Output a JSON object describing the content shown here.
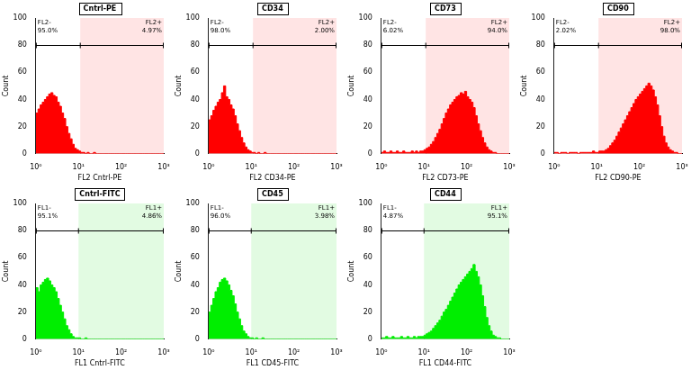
{
  "chart_data": [
    {
      "type": "histogram",
      "title": "Cntrl-PE",
      "x_label": "FL2 Cntrl-PE",
      "y_label": "Count",
      "log": "x",
      "grid": false,
      "color": "#ff0000",
      "xlim": [
        1,
        1000
      ],
      "xticks": [
        {
          "value": 1,
          "label": "10⁰"
        },
        {
          "value": 10,
          "label": "10¹"
        },
        {
          "value": 100,
          "label": "10²"
        },
        {
          "value": 1000,
          "label": "10³"
        }
      ],
      "ylim": [
        0,
        100
      ],
      "yticks": [
        0,
        20,
        40,
        60,
        80,
        100
      ],
      "gate": 11,
      "regions": [
        {
          "name": "FL2-",
          "label": "95.0%",
          "color": "#ffffff"
        },
        {
          "name": "FL2+",
          "label": "4.97%",
          "color": "#ffe4e4"
        }
      ],
      "bins": [
        1,
        1.122,
        1.259,
        1.413,
        1.585,
        1.778,
        1.995,
        2.239,
        2.512,
        2.818,
        3.162,
        3.548,
        3.981,
        4.467,
        5.012,
        5.623,
        6.31,
        7.079,
        7.943,
        8.913,
        10,
        11.22,
        12.59,
        14.13,
        15.85,
        17.78,
        19.95,
        22.39,
        25.12,
        28.18,
        31.62,
        35.48,
        39.81,
        44.67,
        50.12,
        56.23,
        63.1,
        70.79,
        79.43,
        89.13,
        100,
        112.2,
        125.9,
        141.3,
        158.5,
        177.8,
        199.5,
        223.9,
        251.2,
        281.8,
        316.2,
        354.8,
        398.1,
        446.7,
        501.2,
        562.3,
        631,
        707.9,
        794.3,
        891.3,
        1000
      ],
      "counts": [
        30,
        33,
        36,
        38,
        40,
        42,
        44,
        45,
        43,
        42,
        38,
        35,
        30,
        26,
        20,
        15,
        11,
        7,
        4,
        3,
        2,
        1,
        1,
        0,
        1,
        0,
        0,
        1,
        0,
        0,
        0,
        0,
        0,
        0,
        0,
        0,
        0,
        0,
        0,
        0,
        0,
        0,
        0,
        0,
        0,
        0,
        0,
        0,
        0,
        0,
        0,
        0,
        0,
        0,
        0,
        0,
        0,
        0,
        0,
        0
      ]
    },
    {
      "type": "histogram",
      "title": "CD34",
      "x_label": "FL2 CD34-PE",
      "y_label": "Count",
      "log": "x",
      "grid": false,
      "color": "#ff0000",
      "xlim": [
        1,
        1000
      ],
      "xticks": [
        {
          "value": 1,
          "label": "10⁰"
        },
        {
          "value": 10,
          "label": "10¹"
        },
        {
          "value": 100,
          "label": "10²"
        },
        {
          "value": 1000,
          "label": "10³"
        }
      ],
      "ylim": [
        0,
        100
      ],
      "yticks": [
        0,
        20,
        40,
        60,
        80,
        100
      ],
      "gate": 11,
      "regions": [
        {
          "name": "FL2-",
          "label": "98.0%",
          "color": "#ffffff"
        },
        {
          "name": "FL2+",
          "label": "2.00%",
          "color": "#ffe4e4"
        }
      ],
      "bins": [
        1,
        1.122,
        1.259,
        1.413,
        1.585,
        1.778,
        1.995,
        2.239,
        2.512,
        2.818,
        3.162,
        3.548,
        3.981,
        4.467,
        5.012,
        5.623,
        6.31,
        7.079,
        7.943,
        8.913,
        10,
        11.22,
        12.59,
        14.13,
        15.85,
        17.78,
        19.95,
        22.39,
        25.12,
        28.18,
        31.62,
        35.48,
        39.81,
        44.67,
        50.12,
        56.23,
        63.1,
        70.79,
        79.43,
        89.13,
        100,
        112.2,
        125.9,
        141.3,
        158.5,
        177.8,
        199.5,
        223.9,
        251.2,
        281.8,
        316.2,
        354.8,
        398.1,
        446.7,
        501.2,
        562.3,
        631,
        707.9,
        794.3,
        891.3,
        1000
      ],
      "counts": [
        25,
        28,
        32,
        35,
        38,
        40,
        45,
        50,
        42,
        40,
        36,
        33,
        28,
        22,
        17,
        12,
        8,
        5,
        3,
        2,
        1,
        1,
        0,
        1,
        0,
        0,
        1,
        0,
        0,
        0,
        0,
        0,
        0,
        0,
        0,
        0,
        0,
        0,
        0,
        0,
        0,
        0,
        0,
        0,
        0,
        0,
        0,
        0,
        0,
        0,
        0,
        0,
        0,
        0,
        0,
        0,
        0,
        0,
        0,
        0
      ]
    },
    {
      "type": "histogram",
      "title": "CD73",
      "x_label": "FL2 CD73-PE",
      "y_label": "Count",
      "log": "x",
      "grid": false,
      "color": "#ff0000",
      "xlim": [
        1,
        1000
      ],
      "xticks": [
        {
          "value": 1,
          "label": "10⁰"
        },
        {
          "value": 10,
          "label": "10¹"
        },
        {
          "value": 100,
          "label": "10²"
        },
        {
          "value": 1000,
          "label": "10³"
        }
      ],
      "ylim": [
        0,
        100
      ],
      "yticks": [
        0,
        20,
        40,
        60,
        80,
        100
      ],
      "gate": 11,
      "regions": [
        {
          "name": "FL2-",
          "label": "6.02%",
          "color": "#ffffff"
        },
        {
          "name": "FL2+",
          "label": "94.0%",
          "color": "#ffe4e4"
        }
      ],
      "bins": [
        1,
        1.122,
        1.259,
        1.413,
        1.585,
        1.778,
        1.995,
        2.239,
        2.512,
        2.818,
        3.162,
        3.548,
        3.981,
        4.467,
        5.012,
        5.623,
        6.31,
        7.079,
        7.943,
        8.913,
        10,
        11.22,
        12.59,
        14.13,
        15.85,
        17.78,
        19.95,
        22.39,
        25.12,
        28.18,
        31.62,
        35.48,
        39.81,
        44.67,
        50.12,
        56.23,
        63.1,
        70.79,
        79.43,
        89.13,
        100,
        112.2,
        125.9,
        141.3,
        158.5,
        177.8,
        199.5,
        223.9,
        251.2,
        281.8,
        316.2,
        354.8,
        398.1,
        446.7,
        501.2,
        562.3,
        631,
        707.9,
        794.3,
        891.3,
        1000
      ],
      "counts": [
        1,
        2,
        1,
        1,
        2,
        1,
        1,
        2,
        1,
        1,
        2,
        1,
        1,
        1,
        2,
        1,
        2,
        1,
        2,
        2,
        3,
        4,
        5,
        7,
        9,
        12,
        15,
        18,
        22,
        26,
        30,
        33,
        36,
        38,
        40,
        42,
        43,
        45,
        44,
        46,
        42,
        40,
        38,
        34,
        28,
        22,
        17,
        12,
        8,
        5,
        3,
        2,
        1,
        1,
        0,
        0,
        0,
        0,
        0,
        0
      ]
    },
    {
      "type": "histogram",
      "title": "CD90",
      "x_label": "FL2 CD90-PE",
      "y_label": "Count",
      "log": "x",
      "grid": false,
      "color": "#ff0000",
      "xlim": [
        1,
        1000
      ],
      "xticks": [
        {
          "value": 1,
          "label": "10⁰"
        },
        {
          "value": 10,
          "label": "10¹"
        },
        {
          "value": 100,
          "label": "10²"
        },
        {
          "value": 1000,
          "label": "10³"
        }
      ],
      "ylim": [
        0,
        100
      ],
      "yticks": [
        0,
        20,
        40,
        60,
        80,
        100
      ],
      "gate": 11,
      "regions": [
        {
          "name": "FL2-",
          "label": "2.02%",
          "color": "#ffffff"
        },
        {
          "name": "FL2+",
          "label": "98.0%",
          "color": "#ffe4e4"
        }
      ],
      "bins": [
        1,
        1.122,
        1.259,
        1.413,
        1.585,
        1.778,
        1.995,
        2.239,
        2.512,
        2.818,
        3.162,
        3.548,
        3.981,
        4.467,
        5.012,
        5.623,
        6.31,
        7.079,
        7.943,
        8.913,
        10,
        11.22,
        12.59,
        14.13,
        15.85,
        17.78,
        19.95,
        22.39,
        25.12,
        28.18,
        31.62,
        35.48,
        39.81,
        44.67,
        50.12,
        56.23,
        63.1,
        70.79,
        79.43,
        89.13,
        100,
        112.2,
        125.9,
        141.3,
        158.5,
        177.8,
        199.5,
        223.9,
        251.2,
        281.8,
        316.2,
        354.8,
        398.1,
        446.7,
        501.2,
        562.3,
        631,
        707.9,
        794.3,
        891.3,
        1000
      ],
      "counts": [
        1,
        1,
        0,
        1,
        1,
        1,
        0,
        1,
        1,
        1,
        1,
        0,
        1,
        1,
        1,
        1,
        1,
        1,
        2,
        1,
        1,
        2,
        2,
        2,
        3,
        4,
        6,
        8,
        10,
        13,
        16,
        19,
        22,
        25,
        28,
        31,
        34,
        37,
        40,
        42,
        44,
        46,
        48,
        50,
        52,
        50,
        47,
        42,
        36,
        28,
        20,
        13,
        8,
        5,
        3,
        2,
        1,
        1,
        0,
        0
      ]
    },
    {
      "type": "histogram",
      "title": "Cntrl-FITC",
      "x_label": "FL1 Cntrl-FITC",
      "y_label": "Count",
      "log": "x",
      "grid": false,
      "color": "#00ee00",
      "xlim": [
        1,
        1000
      ],
      "xticks": [
        {
          "value": 1,
          "label": "10⁰"
        },
        {
          "value": 10,
          "label": "10¹"
        },
        {
          "value": 100,
          "label": "10²"
        },
        {
          "value": 1000,
          "label": "10³"
        }
      ],
      "ylim": [
        0,
        100
      ],
      "yticks": [
        0,
        20,
        40,
        60,
        80,
        100
      ],
      "gate": 10,
      "regions": [
        {
          "name": "FL1-",
          "label": "95.1%",
          "color": "#ffffff"
        },
        {
          "name": "FL1+",
          "label": "4.86%",
          "color": "#e2fbe2"
        }
      ],
      "bins": [
        1,
        1.122,
        1.259,
        1.413,
        1.585,
        1.778,
        1.995,
        2.239,
        2.512,
        2.818,
        3.162,
        3.548,
        3.981,
        4.467,
        5.012,
        5.623,
        6.31,
        7.079,
        7.943,
        8.913,
        10,
        11.22,
        12.59,
        14.13,
        15.85,
        17.78,
        19.95,
        22.39,
        25.12,
        28.18,
        31.62,
        35.48,
        39.81,
        44.67,
        50.12,
        56.23,
        63.1,
        70.79,
        79.43,
        89.13,
        100,
        112.2,
        125.9,
        141.3,
        158.5,
        177.8,
        199.5,
        223.9,
        251.2,
        281.8,
        316.2,
        354.8,
        398.1,
        446.7,
        501.2,
        562.3,
        631,
        707.9,
        794.3,
        891.3,
        1000
      ],
      "counts": [
        38,
        35,
        40,
        42,
        44,
        45,
        43,
        40,
        38,
        35,
        30,
        25,
        20,
        15,
        10,
        7,
        4,
        2,
        1,
        1,
        1,
        0,
        0,
        1,
        0,
        0,
        0,
        0,
        0,
        0,
        0,
        0,
        0,
        0,
        0,
        0,
        0,
        0,
        0,
        0,
        0,
        0,
        0,
        0,
        0,
        0,
        0,
        0,
        0,
        0,
        0,
        0,
        0,
        0,
        0,
        0,
        0,
        0,
        0,
        0
      ]
    },
    {
      "type": "histogram",
      "title": "CD45",
      "x_label": "FL1 CD45-FITC",
      "y_label": "Count",
      "log": "x",
      "grid": false,
      "color": "#00ee00",
      "xlim": [
        1,
        1000
      ],
      "xticks": [
        {
          "value": 1,
          "label": "10⁰"
        },
        {
          "value": 10,
          "label": "10¹"
        },
        {
          "value": 100,
          "label": "10²"
        },
        {
          "value": 1000,
          "label": "10³"
        }
      ],
      "ylim": [
        0,
        100
      ],
      "yticks": [
        0,
        20,
        40,
        60,
        80,
        100
      ],
      "gate": 10,
      "regions": [
        {
          "name": "FL1-",
          "label": "96.0%",
          "color": "#ffffff"
        },
        {
          "name": "FL1+",
          "label": "3.98%",
          "color": "#e2fbe2"
        }
      ],
      "bins": [
        1,
        1.122,
        1.259,
        1.413,
        1.585,
        1.778,
        1.995,
        2.239,
        2.512,
        2.818,
        3.162,
        3.548,
        3.981,
        4.467,
        5.012,
        5.623,
        6.31,
        7.079,
        7.943,
        8.913,
        10,
        11.22,
        12.59,
        14.13,
        15.85,
        17.78,
        19.95,
        22.39,
        25.12,
        28.18,
        31.62,
        35.48,
        39.81,
        44.67,
        50.12,
        56.23,
        63.1,
        70.79,
        79.43,
        89.13,
        100,
        112.2,
        125.9,
        141.3,
        158.5,
        177.8,
        199.5,
        223.9,
        251.2,
        281.8,
        316.2,
        354.8,
        398.1,
        446.7,
        501.2,
        562.3,
        631,
        707.9,
        794.3,
        891.3,
        1000
      ],
      "counts": [
        20,
        25,
        30,
        35,
        38,
        42,
        44,
        45,
        43,
        40,
        36,
        32,
        26,
        20,
        15,
        10,
        6,
        4,
        2,
        1,
        1,
        0,
        1,
        0,
        0,
        1,
        0,
        0,
        0,
        0,
        0,
        0,
        0,
        0,
        0,
        0,
        0,
        0,
        0,
        0,
        0,
        0,
        0,
        0,
        0,
        0,
        0,
        0,
        0,
        0,
        0,
        0,
        0,
        0,
        0,
        0,
        0,
        0,
        0,
        0
      ]
    },
    {
      "type": "histogram",
      "title": "CD44",
      "x_label": "FL1 CD44-FITC",
      "y_label": "Count",
      "log": "x",
      "grid": false,
      "color": "#00ee00",
      "xlim": [
        1,
        1000
      ],
      "xticks": [
        {
          "value": 1,
          "label": "10⁰"
        },
        {
          "value": 10,
          "label": "10¹"
        },
        {
          "value": 100,
          "label": "10²"
        },
        {
          "value": 1000,
          "label": "10³"
        }
      ],
      "ylim": [
        0,
        100
      ],
      "yticks": [
        0,
        20,
        40,
        60,
        80,
        100
      ],
      "gate": 10,
      "regions": [
        {
          "name": "FL1-",
          "label": "4.87%",
          "color": "#ffffff"
        },
        {
          "name": "FL1+",
          "label": "95.1%",
          "color": "#e2fbe2"
        }
      ],
      "bins": [
        1,
        1.122,
        1.259,
        1.413,
        1.585,
        1.778,
        1.995,
        2.239,
        2.512,
        2.818,
        3.162,
        3.548,
        3.981,
        4.467,
        5.012,
        5.623,
        6.31,
        7.079,
        7.943,
        8.913,
        10,
        11.22,
        12.59,
        14.13,
        15.85,
        17.78,
        19.95,
        22.39,
        25.12,
        28.18,
        31.62,
        35.48,
        39.81,
        44.67,
        50.12,
        56.23,
        63.1,
        70.79,
        79.43,
        89.13,
        100,
        112.2,
        125.9,
        141.3,
        158.5,
        177.8,
        199.5,
        223.9,
        251.2,
        281.8,
        316.2,
        354.8,
        398.1,
        446.7,
        501.2,
        562.3,
        631,
        707.9,
        794.3,
        891.3,
        1000
      ],
      "counts": [
        1,
        1,
        2,
        1,
        1,
        2,
        1,
        1,
        1,
        2,
        1,
        1,
        2,
        1,
        1,
        2,
        1,
        2,
        2,
        2,
        3,
        4,
        5,
        6,
        8,
        10,
        12,
        14,
        17,
        20,
        22,
        25,
        28,
        31,
        34,
        37,
        40,
        42,
        44,
        46,
        48,
        50,
        52,
        55,
        50,
        46,
        40,
        32,
        24,
        16,
        10,
        6,
        3,
        2,
        1,
        1,
        0,
        0,
        0,
        0
      ]
    }
  ]
}
